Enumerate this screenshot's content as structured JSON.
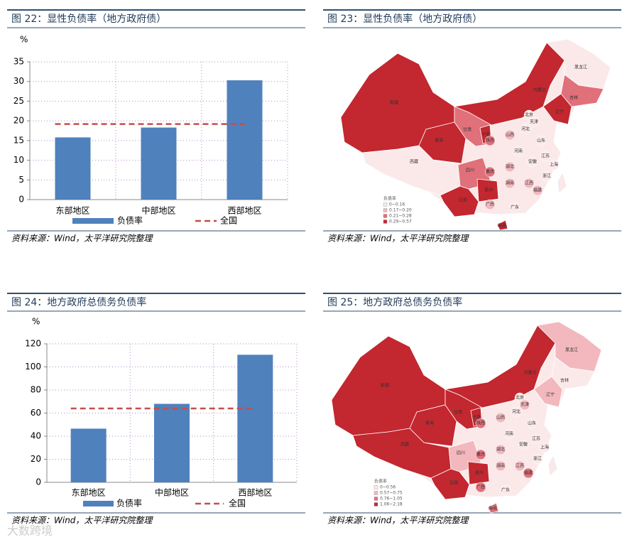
{
  "chart_data": [
    {
      "type": "bar",
      "title": "图 22：显性负债率（地方政府债）",
      "ylabel": "%",
      "categories": [
        "东部地区",
        "中部地区",
        "西部地区"
      ],
      "series": [
        {
          "name": "负债率",
          "color": "#4f81bd",
          "values": [
            15.8,
            18.3,
            30.3
          ]
        }
      ],
      "reference_line": {
        "name": "全国",
        "value": 19.2,
        "color": "#c0504d"
      },
      "ylim": [
        0,
        35
      ],
      "yticks": [
        0,
        5,
        10,
        15,
        20,
        25,
        30,
        35
      ],
      "grid": true,
      "source": "资料来源：Wind，太平洋研究院整理"
    },
    {
      "type": "bar",
      "title": "图 24：地方政府总债务负债率",
      "ylabel": "%",
      "categories": [
        "东部地区",
        "中部地区",
        "西部地区"
      ],
      "series": [
        {
          "name": "负债率",
          "color": "#4f81bd",
          "values": [
            46.5,
            68,
            110.5
          ]
        }
      ],
      "reference_line": {
        "name": "全国",
        "value": 64,
        "color": "#c0504d"
      },
      "ylim": [
        0,
        120
      ],
      "yticks": [
        0,
        20,
        40,
        60,
        80,
        100,
        120
      ],
      "grid": true,
      "source": "资料来源：Wind，太平洋研究院整理"
    }
  ],
  "maps": [
    {
      "title": "图 23：显性负债率（地方政府债）",
      "legend_title": "负债率",
      "legend": [
        {
          "label": "0~0.16",
          "color": "#fbe9ea"
        },
        {
          "label": "0.17~0.20",
          "color": "#f2b8bd"
        },
        {
          "label": "0.21~0.28",
          "color": "#e0707a"
        },
        {
          "label": "0.29~0.57",
          "color": "#c3272f"
        }
      ],
      "base_color": "#fbe9ea",
      "provinces": [
        {
          "label": "新疆",
          "color": "#c3272f"
        },
        {
          "label": "西藏",
          "color": "#fbe9ea"
        },
        {
          "label": "青海",
          "color": "#c3272f"
        },
        {
          "label": "甘肃",
          "color": "#e0707a"
        },
        {
          "label": "宁夏",
          "color": "#c3272f"
        },
        {
          "label": "内蒙古",
          "color": "#c3272f"
        },
        {
          "label": "黑龙江",
          "color": "#fbe9ea"
        },
        {
          "label": "吉林",
          "color": "#e0707a"
        },
        {
          "label": "辽宁",
          "color": "#c3272f"
        },
        {
          "label": "北京",
          "color": "#fbe9ea"
        },
        {
          "label": "天津",
          "color": "#fbe9ea"
        },
        {
          "label": "河北",
          "color": "#fbe9ea"
        },
        {
          "label": "山西",
          "color": "#f2b8bd"
        },
        {
          "label": "陕西",
          "color": "#e0707a"
        },
        {
          "label": "山东",
          "color": "#fbe9ea"
        },
        {
          "label": "河南",
          "color": "#fbe9ea"
        },
        {
          "label": "江苏",
          "color": "#fbe9ea"
        },
        {
          "label": "安徽",
          "color": "#fbe9ea"
        },
        {
          "label": "湖北",
          "color": "#f2b8bd"
        },
        {
          "label": "四川",
          "color": "#e0707a"
        },
        {
          "label": "重庆",
          "color": "#e0707a"
        },
        {
          "label": "上海",
          "color": "#fbe9ea"
        },
        {
          "label": "浙江",
          "color": "#fbe9ea"
        },
        {
          "label": "湖南",
          "color": "#f2b8bd"
        },
        {
          "label": "江西",
          "color": "#f2b8bd"
        },
        {
          "label": "贵州",
          "color": "#c3272f"
        },
        {
          "label": "云南",
          "color": "#c3272f"
        },
        {
          "label": "广西",
          "color": "#f2b8bd"
        },
        {
          "label": "广东",
          "color": "#fbe9ea"
        },
        {
          "label": "福建",
          "color": "#f2b8bd"
        },
        {
          "label": "海南",
          "color": "#c3272f"
        }
      ],
      "source": "资料来源：Wind，太平洋研究院整理"
    },
    {
      "title": "图 25：地方政府总债务负债率",
      "legend_title": "负债率",
      "legend": [
        {
          "label": "0~0.56",
          "color": "#fbe9ea"
        },
        {
          "label": "0.57~0.75",
          "color": "#f2b8bd"
        },
        {
          "label": "0.76~1.05",
          "color": "#e0707a"
        },
        {
          "label": "1.06~2.18",
          "color": "#c3272f"
        }
      ],
      "base_color": "#fbe9ea",
      "provinces": [
        {
          "label": "新疆",
          "color": "#c3272f"
        },
        {
          "label": "西藏",
          "color": "#c3272f"
        },
        {
          "label": "青海",
          "color": "#c3272f"
        },
        {
          "label": "甘肃",
          "color": "#c3272f"
        },
        {
          "label": "宁夏",
          "color": "#c3272f"
        },
        {
          "label": "内蒙古",
          "color": "#c3272f"
        },
        {
          "label": "黑龙江",
          "color": "#f2b8bd"
        },
        {
          "label": "吉林",
          "color": "#fbe9ea"
        },
        {
          "label": "辽宁",
          "color": "#f2b8bd"
        },
        {
          "label": "北京",
          "color": "#fbe9ea"
        },
        {
          "label": "天津",
          "color": "#f2b8bd"
        },
        {
          "label": "河北",
          "color": "#fbe9ea"
        },
        {
          "label": "山西",
          "color": "#f2b8bd"
        },
        {
          "label": "陕西",
          "color": "#e0707a"
        },
        {
          "label": "山东",
          "color": "#fbe9ea"
        },
        {
          "label": "河南",
          "color": "#fbe9ea"
        },
        {
          "label": "江苏",
          "color": "#fbe9ea"
        },
        {
          "label": "安徽",
          "color": "#fbe9ea"
        },
        {
          "label": "湖北",
          "color": "#f2b8bd"
        },
        {
          "label": "四川",
          "color": "#f2b8bd"
        },
        {
          "label": "重庆",
          "color": "#e0707a"
        },
        {
          "label": "上海",
          "color": "#fbe9ea"
        },
        {
          "label": "浙江",
          "color": "#fbe9ea"
        },
        {
          "label": "湖南",
          "color": "#f2b8bd"
        },
        {
          "label": "江西",
          "color": "#f2b8bd"
        },
        {
          "label": "贵州",
          "color": "#c3272f"
        },
        {
          "label": "云南",
          "color": "#c3272f"
        },
        {
          "label": "广西",
          "color": "#e0707a"
        },
        {
          "label": "广东",
          "color": "#fbe9ea"
        },
        {
          "label": "福建",
          "color": "#e0707a"
        },
        {
          "label": "海南",
          "color": "#e0707a"
        }
      ],
      "source": "资料来源：Wind，太平洋研究院整理"
    }
  ],
  "watermark": "大数跨境"
}
